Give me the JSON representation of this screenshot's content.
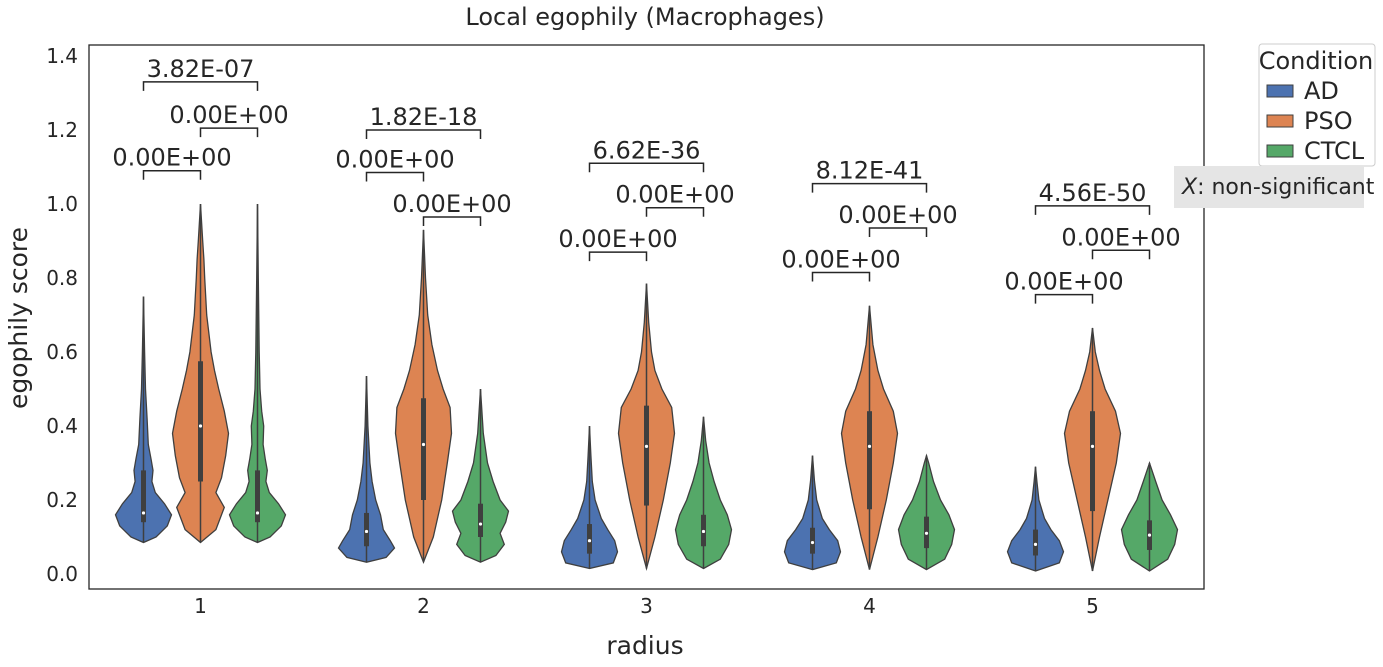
{
  "chart_data": {
    "type": "violin",
    "title": "Local egophily (Macrophages)",
    "xlabel": "radius",
    "ylabel": "egophily score",
    "categories": [
      "1",
      "2",
      "3",
      "4",
      "5"
    ],
    "yticks": [
      "0.0",
      "0.2",
      "0.4",
      "0.6",
      "0.8",
      "1.0",
      "1.2",
      "1.4"
    ],
    "ylim": [
      -0.04,
      1.42
    ],
    "grid": false,
    "legend": {
      "title": "Condition",
      "placement": "outside-top-right",
      "entries": [
        "AD",
        "PSO",
        "CTCL"
      ]
    },
    "note": {
      "symbol": "X",
      "text": ": non-significant"
    },
    "series": [
      {
        "name": "AD",
        "color": "#4c72b0",
        "violins": [
          {
            "min": 0.085,
            "max": 0.75,
            "q1": 0.14,
            "median": 0.165,
            "q3": 0.28,
            "profile": [
              [
                0.085,
                0.0
              ],
              [
                0.1,
                0.45
              ],
              [
                0.13,
                0.85
              ],
              [
                0.16,
                1.0
              ],
              [
                0.19,
                0.75
              ],
              [
                0.22,
                0.42
              ],
              [
                0.25,
                0.3
              ],
              [
                0.28,
                0.34
              ],
              [
                0.31,
                0.27
              ],
              [
                0.35,
                0.17
              ],
              [
                0.42,
                0.13
              ],
              [
                0.46,
                0.1
              ],
              [
                0.5,
                0.07
              ],
              [
                0.6,
                0.04
              ],
              [
                0.75,
                0.0
              ]
            ]
          },
          {
            "min": 0.032,
            "max": 0.535,
            "q1": 0.075,
            "median": 0.115,
            "q3": 0.165,
            "profile": [
              [
                0.032,
                0.0
              ],
              [
                0.045,
                0.7
              ],
              [
                0.07,
                1.0
              ],
              [
                0.09,
                0.85
              ],
              [
                0.12,
                0.6
              ],
              [
                0.16,
                0.5
              ],
              [
                0.2,
                0.33
              ],
              [
                0.25,
                0.2
              ],
              [
                0.3,
                0.12
              ],
              [
                0.4,
                0.05
              ],
              [
                0.535,
                0.0
              ]
            ]
          },
          {
            "min": 0.015,
            "max": 0.4,
            "q1": 0.055,
            "median": 0.09,
            "q3": 0.135,
            "profile": [
              [
                0.015,
                0.0
              ],
              [
                0.03,
                0.85
              ],
              [
                0.06,
                1.0
              ],
              [
                0.09,
                0.9
              ],
              [
                0.12,
                0.65
              ],
              [
                0.15,
                0.42
              ],
              [
                0.2,
                0.2
              ],
              [
                0.25,
                0.1
              ],
              [
                0.32,
                0.05
              ],
              [
                0.4,
                0.0
              ]
            ]
          },
          {
            "min": 0.012,
            "max": 0.32,
            "q1": 0.055,
            "median": 0.085,
            "q3": 0.125,
            "profile": [
              [
                0.012,
                0.0
              ],
              [
                0.03,
                0.85
              ],
              [
                0.06,
                1.0
              ],
              [
                0.09,
                0.9
              ],
              [
                0.12,
                0.6
              ],
              [
                0.15,
                0.35
              ],
              [
                0.2,
                0.15
              ],
              [
                0.25,
                0.07
              ],
              [
                0.32,
                0.0
              ]
            ]
          },
          {
            "min": 0.008,
            "max": 0.29,
            "q1": 0.05,
            "median": 0.08,
            "q3": 0.12,
            "profile": [
              [
                0.008,
                0.0
              ],
              [
                0.03,
                0.85
              ],
              [
                0.06,
                1.0
              ],
              [
                0.09,
                0.85
              ],
              [
                0.12,
                0.55
              ],
              [
                0.15,
                0.32
              ],
              [
                0.2,
                0.12
              ],
              [
                0.25,
                0.05
              ],
              [
                0.29,
                0.0
              ]
            ]
          }
        ]
      },
      {
        "name": "PSO",
        "color": "#dd8452",
        "violins": [
          {
            "min": 0.085,
            "max": 1.0,
            "q1": 0.25,
            "median": 0.4,
            "q3": 0.575,
            "profile": [
              [
                0.085,
                0.0
              ],
              [
                0.12,
                0.55
              ],
              [
                0.18,
                0.85
              ],
              [
                0.22,
                0.55
              ],
              [
                0.26,
                0.75
              ],
              [
                0.32,
                0.9
              ],
              [
                0.38,
                1.0
              ],
              [
                0.44,
                0.85
              ],
              [
                0.5,
                0.65
              ],
              [
                0.55,
                0.5
              ],
              [
                0.6,
                0.38
              ],
              [
                0.7,
                0.22
              ],
              [
                0.8,
                0.15
              ],
              [
                0.85,
                0.12
              ],
              [
                0.9,
                0.08
              ],
              [
                1.0,
                0.0
              ]
            ]
          },
          {
            "min": 0.032,
            "max": 0.93,
            "q1": 0.2,
            "median": 0.35,
            "q3": 0.475,
            "profile": [
              [
                0.032,
                0.0
              ],
              [
                0.1,
                0.35
              ],
              [
                0.2,
                0.65
              ],
              [
                0.3,
                0.85
              ],
              [
                0.38,
                1.0
              ],
              [
                0.45,
                0.95
              ],
              [
                0.5,
                0.7
              ],
              [
                0.55,
                0.5
              ],
              [
                0.62,
                0.3
              ],
              [
                0.7,
                0.15
              ],
              [
                0.8,
                0.07
              ],
              [
                0.93,
                0.0
              ]
            ]
          },
          {
            "min": 0.015,
            "max": 0.785,
            "q1": 0.185,
            "median": 0.345,
            "q3": 0.455,
            "profile": [
              [
                0.015,
                0.0
              ],
              [
                0.1,
                0.3
              ],
              [
                0.2,
                0.6
              ],
              [
                0.3,
                0.85
              ],
              [
                0.38,
                1.0
              ],
              [
                0.45,
                0.9
              ],
              [
                0.5,
                0.55
              ],
              [
                0.55,
                0.3
              ],
              [
                0.6,
                0.18
              ],
              [
                0.68,
                0.08
              ],
              [
                0.785,
                0.0
              ]
            ]
          },
          {
            "min": 0.012,
            "max": 0.725,
            "q1": 0.175,
            "median": 0.345,
            "q3": 0.44,
            "profile": [
              [
                0.012,
                0.0
              ],
              [
                0.1,
                0.3
              ],
              [
                0.2,
                0.6
              ],
              [
                0.3,
                0.85
              ],
              [
                0.38,
                1.0
              ],
              [
                0.44,
                0.85
              ],
              [
                0.5,
                0.5
              ],
              [
                0.55,
                0.3
              ],
              [
                0.62,
                0.12
              ],
              [
                0.725,
                0.0
              ]
            ]
          },
          {
            "min": 0.008,
            "max": 0.665,
            "q1": 0.17,
            "median": 0.345,
            "q3": 0.44,
            "profile": [
              [
                0.008,
                0.0
              ],
              [
                0.1,
                0.25
              ],
              [
                0.2,
                0.55
              ],
              [
                0.3,
                0.85
              ],
              [
                0.38,
                1.0
              ],
              [
                0.44,
                0.82
              ],
              [
                0.5,
                0.45
              ],
              [
                0.55,
                0.25
              ],
              [
                0.6,
                0.1
              ],
              [
                0.665,
                0.0
              ]
            ]
          }
        ]
      },
      {
        "name": "CTCL",
        "color": "#55a868",
        "violins": [
          {
            "min": 0.085,
            "max": 1.0,
            "q1": 0.14,
            "median": 0.165,
            "q3": 0.28,
            "profile": [
              [
                0.085,
                0.0
              ],
              [
                0.1,
                0.45
              ],
              [
                0.13,
                0.85
              ],
              [
                0.16,
                1.0
              ],
              [
                0.19,
                0.75
              ],
              [
                0.22,
                0.42
              ],
              [
                0.25,
                0.3
              ],
              [
                0.28,
                0.35
              ],
              [
                0.31,
                0.28
              ],
              [
                0.35,
                0.2
              ],
              [
                0.4,
                0.22
              ],
              [
                0.44,
                0.15
              ],
              [
                0.5,
                0.09
              ],
              [
                0.6,
                0.06
              ],
              [
                0.8,
                0.03
              ],
              [
                1.0,
                0.0
              ]
            ]
          },
          {
            "min": 0.032,
            "max": 0.5,
            "q1": 0.1,
            "median": 0.135,
            "q3": 0.19,
            "profile": [
              [
                0.032,
                0.0
              ],
              [
                0.05,
                0.55
              ],
              [
                0.08,
                0.85
              ],
              [
                0.11,
                0.7
              ],
              [
                0.14,
                0.9
              ],
              [
                0.17,
                1.0
              ],
              [
                0.2,
                0.7
              ],
              [
                0.25,
                0.45
              ],
              [
                0.3,
                0.25
              ],
              [
                0.38,
                0.1
              ],
              [
                0.5,
                0.0
              ]
            ]
          },
          {
            "min": 0.015,
            "max": 0.425,
            "q1": 0.075,
            "median": 0.115,
            "q3": 0.16,
            "profile": [
              [
                0.015,
                0.0
              ],
              [
                0.04,
                0.6
              ],
              [
                0.08,
                0.9
              ],
              [
                0.12,
                1.0
              ],
              [
                0.16,
                0.85
              ],
              [
                0.2,
                0.6
              ],
              [
                0.25,
                0.38
              ],
              [
                0.3,
                0.2
              ],
              [
                0.36,
                0.08
              ],
              [
                0.425,
                0.0
              ]
            ]
          },
          {
            "min": 0.012,
            "max": 0.32,
            "q1": 0.07,
            "median": 0.11,
            "q3": 0.155,
            "profile": [
              [
                0.012,
                0.0
              ],
              [
                0.04,
                0.65
              ],
              [
                0.08,
                0.9
              ],
              [
                0.12,
                1.0
              ],
              [
                0.16,
                0.8
              ],
              [
                0.2,
                0.5
              ],
              [
                0.25,
                0.25
              ],
              [
                0.3,
                0.08
              ],
              [
                0.32,
                0.0
              ]
            ]
          },
          {
            "min": 0.008,
            "max": 0.3,
            "q1": 0.065,
            "median": 0.105,
            "q3": 0.145,
            "profile": [
              [
                0.008,
                0.0
              ],
              [
                0.04,
                0.65
              ],
              [
                0.08,
                0.9
              ],
              [
                0.12,
                1.0
              ],
              [
                0.16,
                0.75
              ],
              [
                0.2,
                0.45
              ],
              [
                0.25,
                0.22
              ],
              [
                0.3,
                0.0
              ]
            ]
          }
        ]
      }
    ],
    "annotations": [
      {
        "group": 0,
        "from": "AD",
        "to": "PSO",
        "y": 1.09,
        "text": "0.00E+00"
      },
      {
        "group": 0,
        "from": "PSO",
        "to": "CTCL",
        "y": 1.205,
        "text": "0.00E+00"
      },
      {
        "group": 0,
        "from": "AD",
        "to": "CTCL",
        "y": 1.33,
        "text": "3.82E-07"
      },
      {
        "group": 1,
        "from": "AD",
        "to": "PSO",
        "y": 1.085,
        "text": "0.00E+00"
      },
      {
        "group": 1,
        "from": "PSO",
        "to": "CTCL",
        "y": 0.965,
        "text": "0.00E+00"
      },
      {
        "group": 1,
        "from": "AD",
        "to": "CTCL",
        "y": 1.2,
        "text": "1.82E-18"
      },
      {
        "group": 2,
        "from": "AD",
        "to": "PSO",
        "y": 0.87,
        "text": "0.00E+00"
      },
      {
        "group": 2,
        "from": "PSO",
        "to": "CTCL",
        "y": 0.99,
        "text": "0.00E+00"
      },
      {
        "group": 2,
        "from": "AD",
        "to": "CTCL",
        "y": 1.11,
        "text": "6.62E-36"
      },
      {
        "group": 3,
        "from": "AD",
        "to": "PSO",
        "y": 0.815,
        "text": "0.00E+00"
      },
      {
        "group": 3,
        "from": "PSO",
        "to": "CTCL",
        "y": 0.935,
        "text": "0.00E+00"
      },
      {
        "group": 3,
        "from": "AD",
        "to": "CTCL",
        "y": 1.055,
        "text": "8.12E-41"
      },
      {
        "group": 4,
        "from": "AD",
        "to": "PSO",
        "y": 0.755,
        "text": "0.00E+00"
      },
      {
        "group": 4,
        "from": "PSO",
        "to": "CTCL",
        "y": 0.875,
        "text": "0.00E+00"
      },
      {
        "group": 4,
        "from": "AD",
        "to": "CTCL",
        "y": 0.995,
        "text": "4.56E-50"
      }
    ]
  }
}
